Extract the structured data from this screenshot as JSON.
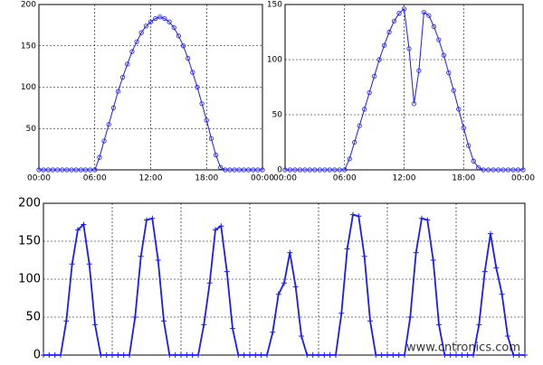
{
  "chart_data": [
    {
      "type": "line",
      "marker": "circle",
      "color": "#1a1aff",
      "grid": true,
      "x": [
        0,
        0.5,
        1,
        1.5,
        2,
        2.5,
        3,
        3.5,
        4,
        4.5,
        5,
        5.5,
        6,
        6.5,
        7,
        7.5,
        8,
        8.5,
        9,
        9.5,
        10,
        10.5,
        11,
        11.5,
        12,
        12.5,
        13,
        13.5,
        14,
        14.5,
        15,
        15.5,
        16,
        16.5,
        17,
        17.5,
        18,
        18.5,
        19,
        19.5,
        20,
        20.5,
        21,
        21.5,
        22,
        22.5,
        23,
        23.5,
        24
      ],
      "values": [
        0,
        0,
        0,
        0,
        0,
        0,
        0,
        0,
        0,
        0,
        0,
        0,
        0,
        15,
        35,
        55,
        75,
        95,
        112,
        128,
        143,
        155,
        166,
        174,
        179,
        183,
        185,
        183,
        179,
        172,
        162,
        150,
        135,
        118,
        100,
        80,
        60,
        38,
        18,
        3,
        0,
        0,
        0,
        0,
        0,
        0,
        0,
        0,
        0
      ],
      "xlim": [
        0,
        24
      ],
      "xticks": [
        {
          "value": 0,
          "label": "00:00"
        },
        {
          "value": 6,
          "label": "06:00"
        },
        {
          "value": 12,
          "label": "12:00"
        },
        {
          "value": 18,
          "label": "18:00"
        },
        {
          "value": 24,
          "label": "00:00"
        }
      ],
      "ylim": [
        0,
        200
      ],
      "yticks": [
        50,
        100,
        150,
        200
      ]
    },
    {
      "type": "line",
      "marker": "circle",
      "color": "#1a1aff",
      "grid": true,
      "x": [
        0,
        0.5,
        1,
        1.5,
        2,
        2.5,
        3,
        3.5,
        4,
        4.5,
        5,
        5.5,
        6,
        6.5,
        7,
        7.5,
        8,
        8.5,
        9,
        9.5,
        10,
        10.5,
        11,
        11.5,
        12,
        12.5,
        13,
        13.5,
        14,
        14.5,
        15,
        15.5,
        16,
        16.5,
        17,
        17.5,
        18,
        18.5,
        19,
        19.5,
        20,
        20.5,
        21,
        21.5,
        22,
        22.5,
        23,
        23.5,
        24
      ],
      "values": [
        0,
        0,
        0,
        0,
        0,
        0,
        0,
        0,
        0,
        0,
        0,
        0,
        0,
        10,
        25,
        40,
        55,
        70,
        85,
        100,
        113,
        125,
        135,
        142,
        146,
        110,
        60,
        90,
        143,
        140,
        130,
        118,
        104,
        88,
        72,
        55,
        38,
        22,
        8,
        2,
        0,
        0,
        0,
        0,
        0,
        0,
        0,
        0,
        0
      ],
      "xlim": [
        0,
        24
      ],
      "xticks": [
        {
          "value": 0,
          "label": "00:00"
        },
        {
          "value": 6,
          "label": "06:00"
        },
        {
          "value": 12,
          "label": "12:00"
        },
        {
          "value": 18,
          "label": "18:00"
        },
        {
          "value": 24,
          "label": "00:00"
        }
      ],
      "ylim": [
        0,
        150
      ],
      "yticks": [
        0,
        50,
        100,
        150
      ]
    },
    {
      "type": "line",
      "marker": "plus",
      "color": "#1a1aff",
      "grid": true,
      "x": [
        0,
        2,
        4,
        6,
        8,
        10,
        12,
        14,
        16,
        18,
        20,
        22,
        24,
        26,
        28,
        30,
        32,
        34,
        36,
        38,
        40,
        42,
        44,
        46,
        48,
        50,
        52,
        54,
        56,
        58,
        60,
        62,
        64,
        66,
        68,
        70,
        72,
        74,
        76,
        78,
        80,
        82,
        84,
        86,
        88,
        90,
        92,
        94,
        96,
        98,
        100,
        102,
        104,
        106,
        108,
        110,
        112,
        114,
        116,
        118,
        120,
        122,
        124,
        126,
        128,
        130,
        132,
        134,
        136,
        138,
        140,
        142,
        144,
        146,
        148,
        150,
        152,
        154,
        156,
        158,
        160,
        162,
        164,
        166,
        168
      ],
      "values": [
        0,
        0,
        0,
        0,
        45,
        120,
        165,
        172,
        120,
        40,
        0,
        0,
        0,
        0,
        0,
        0,
        50,
        130,
        178,
        180,
        125,
        45,
        0,
        0,
        0,
        0,
        0,
        0,
        40,
        95,
        165,
        170,
        110,
        35,
        0,
        0,
        0,
        0,
        0,
        0,
        30,
        80,
        95,
        135,
        90,
        25,
        0,
        0,
        0,
        0,
        0,
        0,
        55,
        140,
        185,
        183,
        130,
        45,
        0,
        0,
        0,
        0,
        0,
        0,
        50,
        135,
        180,
        178,
        125,
        40,
        0,
        0,
        0,
        0,
        0,
        0,
        40,
        110,
        160,
        115,
        80,
        25,
        0,
        0,
        0
      ],
      "xlim": [
        0,
        168
      ],
      "ylim": [
        0,
        200
      ],
      "yticks": [
        0,
        50,
        100,
        150,
        200
      ],
      "watermark": "www.cntronics.com"
    }
  ]
}
